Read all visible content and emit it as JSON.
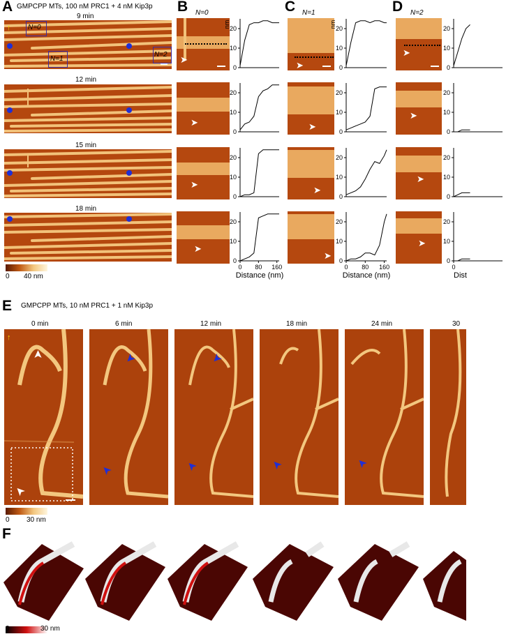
{
  "panel_labels": [
    "A",
    "B",
    "C",
    "D",
    "E",
    "F"
  ],
  "panel_a": {
    "condition": "GMPCPP MTs, 100 nM PRC1 + 4 nM Kip3p",
    "times": [
      "9 min",
      "12 min",
      "15 min",
      "18 min"
    ],
    "box_labels": [
      "N=0",
      "N=1",
      "N=2"
    ],
    "colorbar_min": "0",
    "colorbar_max": "40 nm"
  },
  "panel_headers": {
    "b": "N=0",
    "c": "N=1",
    "d": "N=2"
  },
  "profile_axis": {
    "y_unit": "nm",
    "y_ticks": [
      "0",
      "10",
      "20"
    ],
    "x_ticks": [
      "0",
      "80",
      "160"
    ],
    "x_label": "Distance (nm)",
    "x_label_cut": "Dist"
  },
  "panel_e": {
    "condition": "GMPCPP MTs, 10 nM PRC1 + 1 nM Kip3p",
    "times": [
      "0 min",
      "6 min",
      "12 min",
      "18 min",
      "24 min",
      "30"
    ],
    "colorbar_min": "0",
    "colorbar_max": "30 nm"
  },
  "panel_f": {
    "colorbar_min": "0",
    "colorbar_max": "30 nm"
  },
  "colors": {
    "afm_dark": "#8a2a05",
    "afm_mid": "#c05a14",
    "afm_light": "#f3c77f",
    "afm_peak": "#fff0c8",
    "marker_blue": "#1f2fd6",
    "box_outline": "#3a2aa0",
    "arrow_white": "#ffffff",
    "arrow_yellow": "#f5d400",
    "surface_red": "#d01010",
    "surface_dark": "#5a0a05"
  },
  "chart_data": [
    {
      "type": "line",
      "panel": "B",
      "frame": "9 min",
      "x": [
        0,
        20,
        40,
        60,
        80,
        100,
        120,
        140,
        160,
        170
      ],
      "y": [
        1,
        14,
        22,
        23,
        23,
        24,
        24,
        23,
        23,
        23
      ],
      "xlabel": "",
      "ylabel": "nm",
      "ylim": [
        0,
        25
      ],
      "xlim": [
        0,
        170
      ]
    },
    {
      "type": "line",
      "panel": "B",
      "frame": "12 min",
      "x": [
        0,
        20,
        40,
        60,
        80,
        100,
        120,
        140,
        160,
        170
      ],
      "y": [
        1,
        4,
        5,
        8,
        18,
        21,
        22,
        24,
        24,
        24
      ],
      "xlabel": "",
      "ylabel": "",
      "ylim": [
        0,
        25
      ],
      "xlim": [
        0,
        170
      ]
    },
    {
      "type": "line",
      "panel": "B",
      "frame": "15 min",
      "x": [
        0,
        20,
        40,
        60,
        80,
        100,
        120,
        140,
        160,
        170
      ],
      "y": [
        0,
        1,
        1,
        2,
        22,
        24,
        24,
        24,
        24,
        24
      ],
      "xlabel": "",
      "ylabel": "",
      "ylim": [
        0,
        25
      ],
      "xlim": [
        0,
        170
      ]
    },
    {
      "type": "line",
      "panel": "B",
      "frame": "18 min",
      "x": [
        0,
        20,
        40,
        60,
        80,
        100,
        120,
        140,
        160,
        170
      ],
      "y": [
        0,
        1,
        2,
        4,
        22,
        23,
        24,
        24,
        24,
        24
      ],
      "xlabel": "Distance (nm)",
      "ylabel": "",
      "ylim": [
        0,
        25
      ],
      "xlim": [
        0,
        170
      ]
    },
    {
      "type": "line",
      "panel": "C",
      "frame": "9 min",
      "x": [
        0,
        20,
        40,
        60,
        80,
        100,
        120,
        140,
        160,
        170
      ],
      "y": [
        1,
        13,
        23,
        24,
        24,
        23,
        24,
        24,
        23,
        23
      ],
      "xlabel": "",
      "ylabel": "nm",
      "ylim": [
        0,
        25
      ],
      "xlim": [
        0,
        170
      ]
    },
    {
      "type": "line",
      "panel": "C",
      "frame": "12 min",
      "x": [
        0,
        20,
        40,
        60,
        80,
        100,
        120,
        140,
        160,
        170
      ],
      "y": [
        1,
        2,
        3,
        4,
        5,
        8,
        22,
        23,
        23,
        23
      ],
      "xlabel": "",
      "ylabel": "",
      "ylim": [
        0,
        25
      ],
      "xlim": [
        0,
        170
      ]
    },
    {
      "type": "line",
      "panel": "C",
      "frame": "15 min",
      "x": [
        0,
        20,
        40,
        60,
        80,
        100,
        120,
        140,
        160,
        170
      ],
      "y": [
        1,
        2,
        3,
        5,
        9,
        14,
        18,
        17,
        21,
        24
      ],
      "xlabel": "",
      "ylabel": "",
      "ylim": [
        0,
        25
      ],
      "xlim": [
        0,
        170
      ]
    },
    {
      "type": "line",
      "panel": "C",
      "frame": "18 min",
      "x": [
        0,
        20,
        40,
        60,
        80,
        100,
        120,
        140,
        160,
        170
      ],
      "y": [
        0,
        1,
        1,
        2,
        4,
        4,
        3,
        8,
        20,
        24
      ],
      "xlabel": "Distance (nm)",
      "ylabel": "",
      "ylim": [
        0,
        25
      ],
      "xlim": [
        0,
        170
      ]
    },
    {
      "type": "line",
      "panel": "D",
      "frame": "9 min",
      "x": [
        0,
        5,
        10,
        15,
        20
      ],
      "y": [
        1,
        8,
        15,
        20,
        22
      ],
      "xlabel": "",
      "ylabel": "",
      "ylim": [
        0,
        25
      ],
      "xlim": [
        0,
        170
      ]
    },
    {
      "type": "line",
      "panel": "D",
      "frame": "12 min",
      "x": [
        0,
        5,
        10,
        15,
        20
      ],
      "y": [
        0,
        0,
        1,
        1,
        1
      ],
      "xlabel": "",
      "ylabel": "",
      "ylim": [
        0,
        25
      ],
      "xlim": [
        0,
        170
      ]
    },
    {
      "type": "line",
      "panel": "D",
      "frame": "15 min",
      "x": [
        0,
        5,
        10,
        15,
        20
      ],
      "y": [
        0,
        1,
        2,
        2,
        2
      ],
      "xlabel": "",
      "ylabel": "",
      "ylim": [
        0,
        25
      ],
      "xlim": [
        0,
        170
      ]
    },
    {
      "type": "line",
      "panel": "D",
      "frame": "18 min",
      "x": [
        0,
        5,
        10,
        15,
        20
      ],
      "y": [
        0,
        0,
        1,
        1,
        1
      ],
      "xlabel": "Dist",
      "ylabel": "",
      "ylim": [
        0,
        25
      ],
      "xlim": [
        0,
        170
      ]
    }
  ]
}
